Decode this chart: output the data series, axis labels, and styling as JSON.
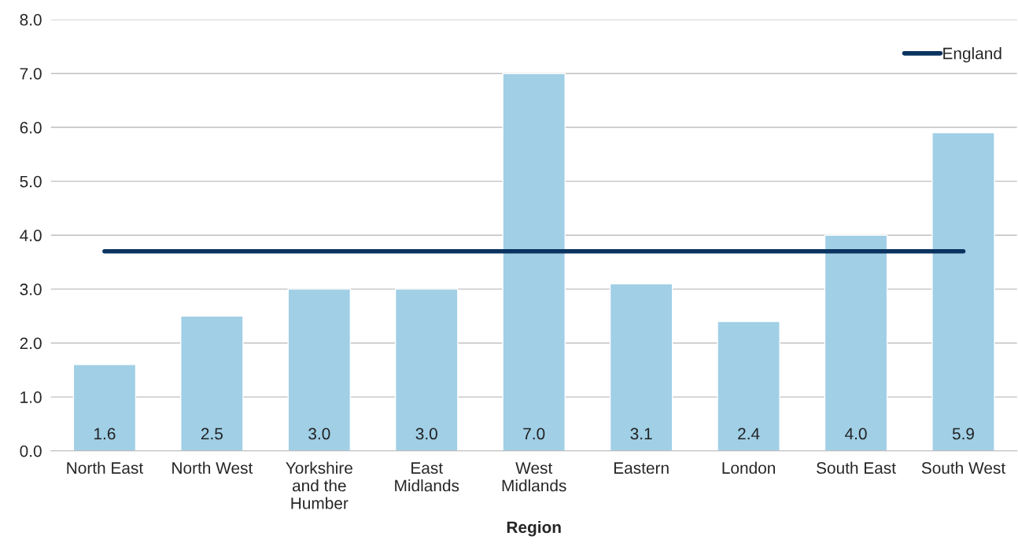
{
  "chart_data": {
    "type": "bar",
    "xlabel": "Region",
    "categories": [
      "North East",
      "North West",
      "Yorkshire\nand the\nHumber",
      "East\nMidlands",
      "West\nMidlands",
      "Eastern",
      "London",
      "South East",
      "South West"
    ],
    "series": [
      {
        "color": "#a0cfe6",
        "values": [
          1.6,
          2.5,
          3.0,
          3.0,
          7.0,
          3.1,
          2.4,
          4.0,
          5.9
        ],
        "value_labels": [
          "1.6",
          "2.5",
          "3.0",
          "3.0",
          "7.0",
          "3.1",
          "2.4",
          "4.0",
          "5.9"
        ]
      },
      {
        "type": "line",
        "name": "England",
        "color": "#0b3360",
        "values": [
          3.7,
          3.7,
          3.7,
          3.7,
          3.7,
          3.7,
          3.7,
          3.7,
          3.7
        ]
      }
    ],
    "ylim": [
      0,
      8
    ],
    "yticks": [
      {
        "value": 0,
        "label": "0.0"
      },
      {
        "value": 1,
        "label": "1.0"
      },
      {
        "value": 2,
        "label": "2.0"
      },
      {
        "value": 3,
        "label": "3.0"
      },
      {
        "value": 4,
        "label": "4.0"
      },
      {
        "value": 5,
        "label": "5.0"
      },
      {
        "value": 6,
        "label": "6.0"
      },
      {
        "value": 7,
        "label": "7.0"
      },
      {
        "value": 8,
        "label": "8.0"
      }
    ],
    "grid": "y",
    "legend": "top right",
    "marker": "none",
    "line_style": "solid"
  }
}
